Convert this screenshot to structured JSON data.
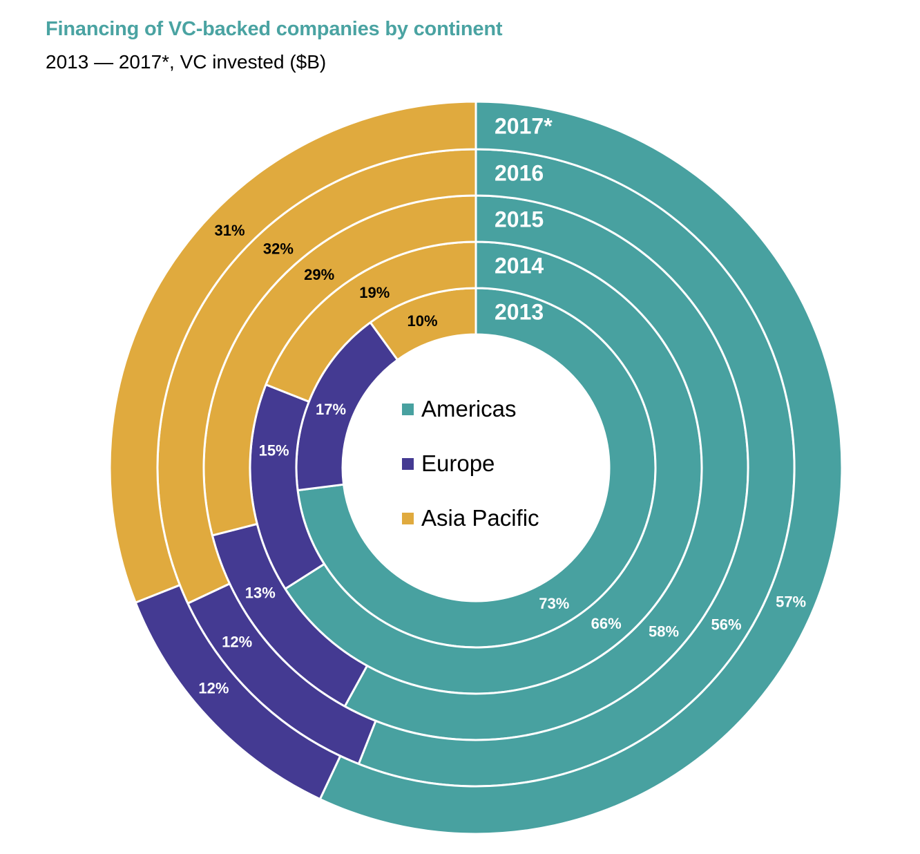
{
  "header": {
    "title": "Financing of VC-backed companies by continent",
    "subtitle": "2013 — 2017*, VC invested ($B)"
  },
  "chart_data": {
    "type": "pie",
    "subtype": "multi-ring donut",
    "title": "Financing of VC-backed companies by continent",
    "subtitle": "2013 — 2017*, VC invested ($B)",
    "unit": "percent share of VC invested",
    "rings_inner_to_outer": [
      "2013",
      "2014",
      "2015",
      "2016",
      "2017*"
    ],
    "categories": [
      "Americas",
      "Europe",
      "Asia Pacific"
    ],
    "colors": {
      "Americas": "#48A1A0",
      "Europe": "#443A92",
      "Asia Pacific": "#E0AA3E"
    },
    "series": [
      {
        "name": "2013",
        "values": [
          73,
          17,
          10
        ],
        "labels": [
          "73%",
          "17%",
          "10%"
        ]
      },
      {
        "name": "2014",
        "values": [
          66,
          15,
          19
        ],
        "labels": [
          "66%",
          "15%",
          "19%"
        ]
      },
      {
        "name": "2015",
        "values": [
          58,
          13,
          29
        ],
        "labels": [
          "58%",
          "13%",
          "29%"
        ]
      },
      {
        "name": "2016",
        "values": [
          56,
          12,
          32
        ],
        "labels": [
          "56%",
          "12%",
          "32%"
        ]
      },
      {
        "name": "2017*",
        "values": [
          57,
          12,
          31
        ],
        "labels": [
          "57%",
          "12%",
          "31%"
        ]
      }
    ],
    "legend": {
      "placement": "center",
      "entries": [
        "Americas",
        "Europe",
        "Asia Pacific"
      ]
    },
    "label_colors": {
      "Americas": "#ffffff",
      "Europe": "#ffffff",
      "Asia Pacific": "#000000",
      "year": "#ffffff"
    }
  }
}
